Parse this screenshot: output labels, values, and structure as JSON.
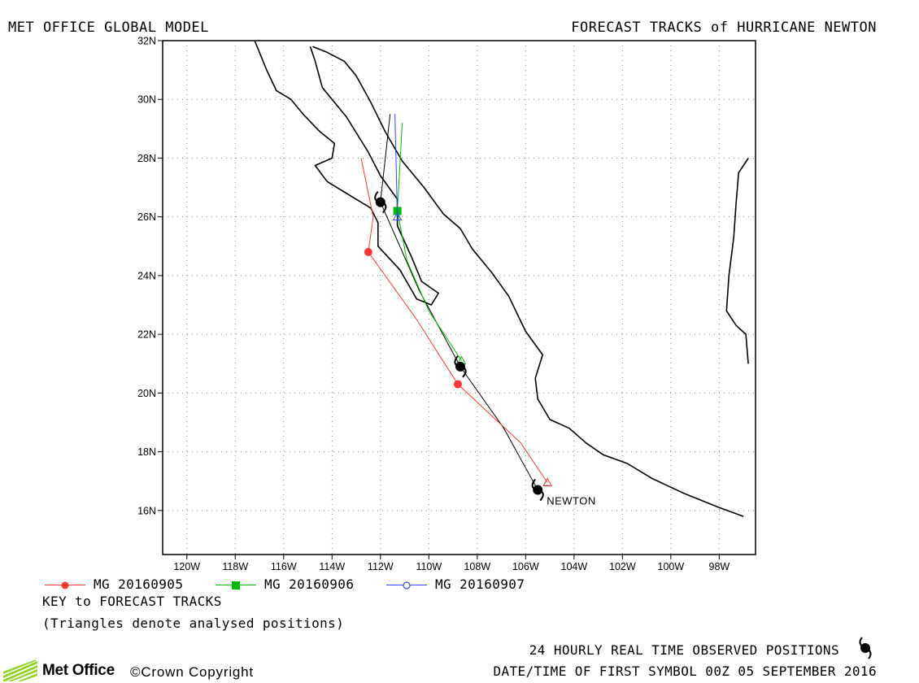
{
  "header": {
    "left_title": "MET OFFICE GLOBAL MODEL",
    "right_title": "FORECAST TRACKS of HURRICANE NEWTON"
  },
  "map": {
    "lon_range": [
      -121,
      -96.5
    ],
    "lat_range": [
      14.5,
      32
    ],
    "lon_ticks": [
      {
        "lon": -120,
        "label": "120W"
      },
      {
        "lon": -118,
        "label": "118W"
      },
      {
        "lon": -116,
        "label": "116W"
      },
      {
        "lon": -114,
        "label": "114W"
      },
      {
        "lon": -112,
        "label": "112W"
      },
      {
        "lon": -110,
        "label": "110W"
      },
      {
        "lon": -108,
        "label": "108W"
      },
      {
        "lon": -106,
        "label": "106W"
      },
      {
        "lon": -104,
        "label": "104W"
      },
      {
        "lon": -102,
        "label": "102W"
      },
      {
        "lon": -100,
        "label": "100W"
      },
      {
        "lon": -98,
        "label": "98W"
      }
    ],
    "lat_ticks": [
      {
        "lat": 16,
        "label": "16N"
      },
      {
        "lat": 18,
        "label": "18N"
      },
      {
        "lat": 20,
        "label": "20N"
      },
      {
        "lat": 22,
        "label": "22N"
      },
      {
        "lat": 24,
        "label": "24N"
      },
      {
        "lat": 26,
        "label": "26N"
      },
      {
        "lat": 28,
        "label": "28N"
      },
      {
        "lat": 30,
        "label": "30N"
      },
      {
        "lat": 32,
        "label": "32N"
      }
    ],
    "grid": true,
    "storm_label": "NEWTON",
    "observed_positions": [
      {
        "lon": -105.5,
        "lat": 16.7
      },
      {
        "lon": -108.7,
        "lat": 20.9
      },
      {
        "lon": -112.0,
        "lat": 26.5
      }
    ],
    "tracks": [
      {
        "name": "MG 20160905",
        "color": "#ff3333",
        "marker": "circle-filled",
        "start": {
          "lon": -105.1,
          "lat": 16.95
        },
        "points": [
          {
            "lon": -108.8,
            "lat": 20.3
          },
          {
            "lon": -112.5,
            "lat": 24.8
          }
        ],
        "path": [
          [
            -105.1,
            16.95
          ],
          [
            -106.2,
            18.3
          ],
          [
            -108.8,
            20.3
          ],
          [
            -110.5,
            22.5
          ],
          [
            -112.5,
            24.8
          ],
          [
            -112.3,
            26.0
          ],
          [
            -112.8,
            28.0
          ]
        ]
      },
      {
        "name": "MG 20160906",
        "color": "#00bb00",
        "marker": "square-filled",
        "start": {
          "lon": -108.65,
          "lat": 21.1
        },
        "points": [
          {
            "lon": -111.3,
            "lat": 26.2
          }
        ],
        "path": [
          [
            -108.65,
            21.1
          ],
          [
            -110.0,
            22.8
          ],
          [
            -110.9,
            24.5
          ],
          [
            -111.3,
            26.2
          ],
          [
            -111.1,
            29.2
          ]
        ]
      },
      {
        "name": "MG 20160907",
        "color": "#3344ff",
        "marker": "circle-open",
        "start": {
          "lon": -111.3,
          "lat": 26.0
        },
        "points": [],
        "path": [
          [
            -111.3,
            26.0
          ],
          [
            -111.35,
            27.8
          ],
          [
            -111.4,
            29.5
          ]
        ]
      }
    ],
    "observed_track": [
      [
        -105.5,
        16.7
      ],
      [
        -106.9,
        18.8
      ],
      [
        -108.7,
        20.9
      ],
      [
        -110.4,
        23.5
      ],
      [
        -112.0,
        26.5
      ],
      [
        -111.6,
        29.5
      ]
    ],
    "coastlines": [
      [
        [
          -117.2,
          32
        ],
        [
          -116.7,
          31.0
        ],
        [
          -116.3,
          30.3
        ],
        [
          -115.7,
          30.0
        ],
        [
          -115.2,
          29.5
        ],
        [
          -114.5,
          28.9
        ],
        [
          -113.9,
          28.5
        ],
        [
          -114.0,
          28.0
        ],
        [
          -114.7,
          27.75
        ],
        [
          -114.2,
          27.2
        ],
        [
          -113.4,
          26.8
        ],
        [
          -112.4,
          26.3
        ],
        [
          -112.1,
          25.8
        ],
        [
          -112.1,
          25.0
        ],
        [
          -111.2,
          24.2
        ],
        [
          -110.5,
          23.2
        ],
        [
          -109.9,
          23.0
        ],
        [
          -109.6,
          23.4
        ],
        [
          -110.3,
          23.8
        ],
        [
          -110.7,
          24.6
        ],
        [
          -111.3,
          25.7
        ],
        [
          -111.3,
          26.6
        ],
        [
          -112.0,
          27.4
        ],
        [
          -112.5,
          28.2
        ],
        [
          -113.4,
          29.4
        ],
        [
          -114.4,
          30.4
        ],
        [
          -114.7,
          31.3
        ],
        [
          -114.9,
          31.8
        ]
      ],
      [
        [
          -114.8,
          31.8
        ],
        [
          -114.2,
          31.6
        ],
        [
          -113.5,
          31.3
        ],
        [
          -113.0,
          30.8
        ],
        [
          -112.4,
          29.9
        ],
        [
          -111.8,
          28.9
        ],
        [
          -111.1,
          27.9
        ],
        [
          -110.2,
          27.0
        ],
        [
          -109.4,
          26.1
        ],
        [
          -108.7,
          25.6
        ],
        [
          -108.2,
          24.9
        ],
        [
          -107.4,
          24.1
        ],
        [
          -106.7,
          23.3
        ],
        [
          -106.0,
          22.1
        ],
        [
          -105.3,
          21.3
        ],
        [
          -105.6,
          20.5
        ],
        [
          -105.5,
          19.8
        ],
        [
          -105.0,
          19.1
        ],
        [
          -104.2,
          18.8
        ],
        [
          -103.5,
          18.3
        ],
        [
          -102.8,
          17.9
        ],
        [
          -101.8,
          17.6
        ],
        [
          -100.8,
          17.1
        ],
        [
          -99.5,
          16.6
        ],
        [
          -98.0,
          16.1
        ],
        [
          -97.0,
          15.8
        ]
      ],
      [
        [
          -96.8,
          28.0
        ],
        [
          -97.2,
          27.5
        ],
        [
          -97.3,
          26.5
        ],
        [
          -97.4,
          25.3
        ],
        [
          -97.6,
          24.0
        ],
        [
          -97.7,
          22.8
        ],
        [
          -97.3,
          22.3
        ],
        [
          -96.9,
          22.0
        ],
        [
          -96.8,
          21.0
        ]
      ]
    ]
  },
  "legend": {
    "key_title": "KEY to FORECAST TRACKS",
    "key_note": "(Triangles denote analysed positions)"
  },
  "footer": {
    "observed_note": "24 HOURLY REAL TIME OBSERVED POSITIONS",
    "first_symbol": "DATE/TIME OF FIRST SYMBOL 00Z 05 SEPTEMBER 2016",
    "logo_text": "Met Office",
    "copyright": "©Crown Copyright"
  }
}
